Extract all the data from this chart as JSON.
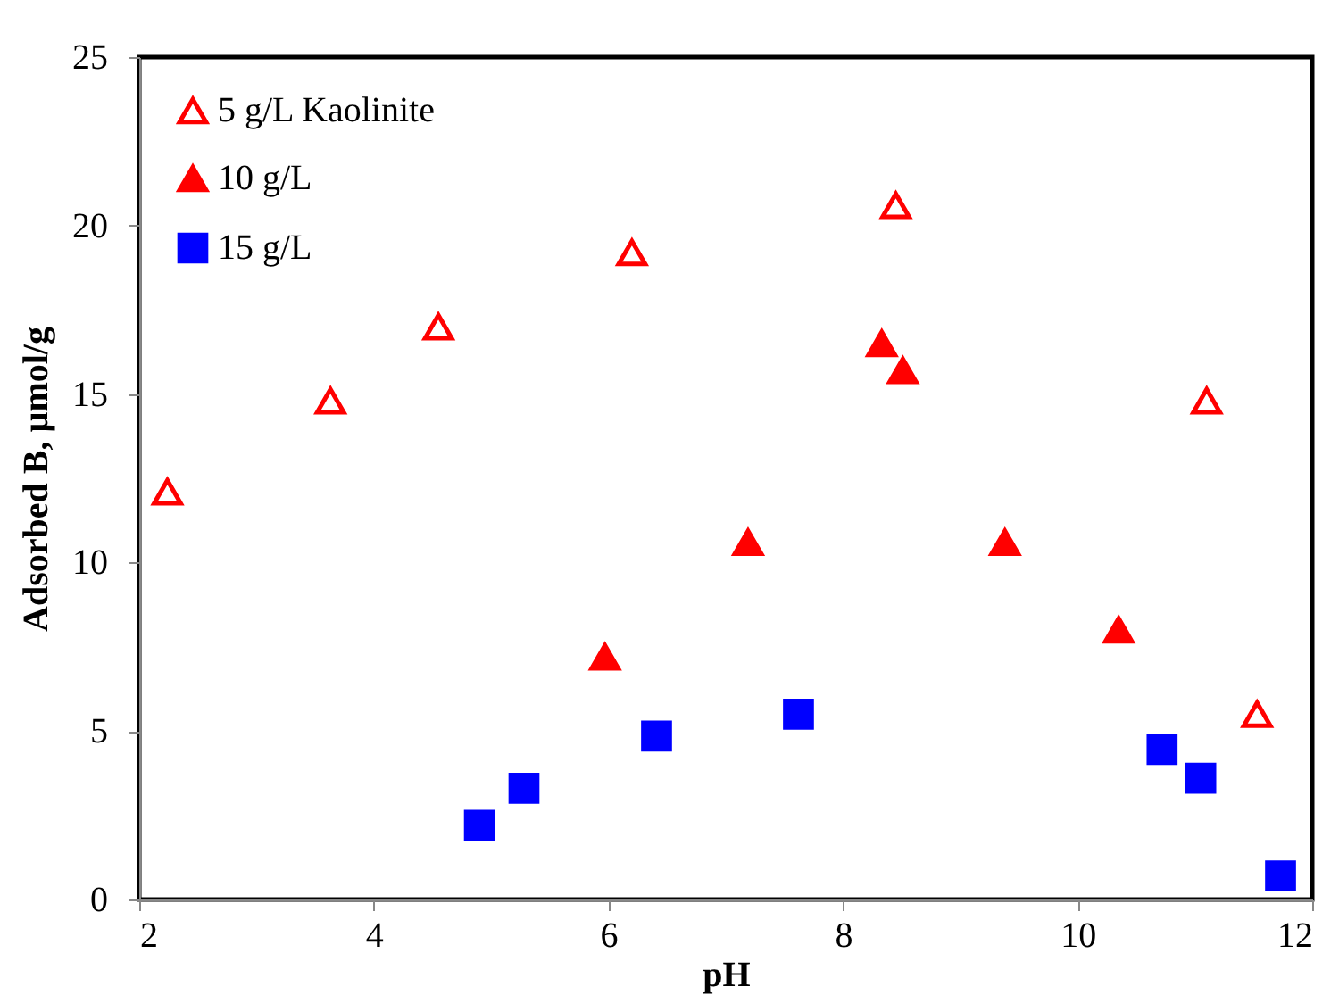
{
  "chart_data": {
    "type": "scatter",
    "xlabel": "pH",
    "ylabel": "Adsorbed B, µmol/g",
    "xlim": [
      2,
      12
    ],
    "ylim": [
      0,
      25
    ],
    "xticks": [
      2,
      4,
      6,
      8,
      10,
      12
    ],
    "yticks": [
      0,
      5,
      10,
      15,
      20,
      25
    ],
    "grid": false,
    "legend": "top left",
    "series": [
      {
        "name": "5 g/L Kaolinite",
        "color": "#ff0000",
        "marker": "triangle",
        "x": [
          2.24,
          3.63,
          4.55,
          6.2,
          8.45,
          11.1,
          11.53
        ],
        "values": [
          12.1,
          14.8,
          17.0,
          19.2,
          20.6,
          14.8,
          5.5
        ]
      },
      {
        "name": "10 g/L",
        "color": "#ff0000",
        "marker": "triangle",
        "x": [
          5.97,
          7.19,
          8.33,
          8.51,
          9.38,
          10.35
        ],
        "values": [
          7.2,
          10.6,
          16.5,
          15.7,
          10.6,
          8.0
        ]
      },
      {
        "name": "15 g/L",
        "color": "#0000ff",
        "marker": "square",
        "x": [
          4.9,
          5.28,
          6.41,
          7.62,
          10.72,
          11.05,
          11.73
        ],
        "values": [
          2.2,
          3.3,
          4.85,
          5.5,
          4.45,
          3.6,
          0.7
        ]
      }
    ]
  }
}
